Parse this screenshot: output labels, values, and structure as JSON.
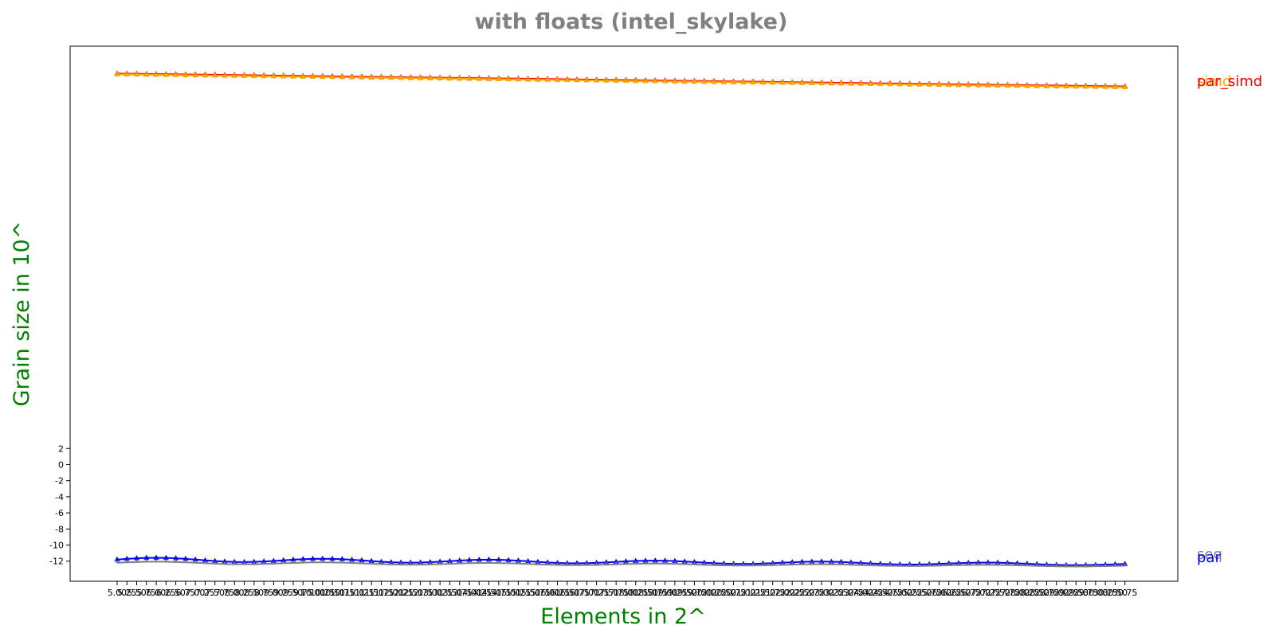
{
  "chart_data": {
    "type": "line",
    "title": "with floats  (intel_skylake)",
    "xlabel": "Elements in 2^",
    "ylabel": "Grain size in 10^",
    "x_range": [
      5.0,
      30.75
    ],
    "x_step": 0.25,
    "xlim": [
      3.8,
      32.1
    ],
    "ylim": [
      -14.5,
      52.0
    ],
    "x_tick_labels": [
      "5.00",
      "5.25",
      "5.50",
      "5.75",
      "6.00",
      "6.25",
      "6.50",
      "6.75",
      "7.00",
      "7.25",
      "7.50",
      "7.75",
      "8.00",
      "8.25",
      "8.50",
      "8.75",
      "9.00",
      "9.25",
      "9.50",
      "9.75",
      "10.00",
      "10.25",
      "10.50",
      "10.75",
      "11.00",
      "11.25",
      "11.50",
      "11.75",
      "12.00",
      "12.25",
      "12.50",
      "12.75",
      "13.00",
      "13.25",
      "13.50",
      "13.75",
      "14.00",
      "14.25",
      "14.50",
      "14.75",
      "15.00",
      "15.25",
      "15.50",
      "15.75",
      "16.00",
      "16.25",
      "16.50",
      "16.75",
      "17.00",
      "17.25",
      "17.50",
      "17.75",
      "18.00",
      "18.25",
      "18.50",
      "18.75",
      "19.00",
      "19.25",
      "19.50",
      "19.75",
      "20.00",
      "20.25",
      "20.50",
      "20.75",
      "21.00",
      "21.25",
      "21.50",
      "21.75",
      "22.00",
      "22.25",
      "22.50",
      "22.75",
      "23.00",
      "23.25",
      "23.50",
      "23.75",
      "24.00",
      "24.25",
      "24.50",
      "24.75",
      "25.00",
      "25.25",
      "25.50",
      "25.75",
      "26.00",
      "26.25",
      "26.50",
      "26.75",
      "27.00",
      "27.25",
      "27.50",
      "27.75",
      "28.00",
      "28.25",
      "28.50",
      "28.75",
      "29.00",
      "29.25",
      "29.50",
      "29.75",
      "30.00",
      "30.25",
      "30.50",
      "30.75"
    ],
    "y_tick_labels": [
      "-12",
      "-10",
      "-8",
      "-6",
      "-4",
      "-2",
      "0",
      "2"
    ],
    "y_ticks": [
      -12,
      -10,
      -8,
      -6,
      -4,
      -2,
      0,
      2
    ],
    "series": [
      {
        "name": "par_simd",
        "color": "#ff0000",
        "start": 48.6,
        "end": 47.0,
        "wiggle": 0.0,
        "marker": "triangle"
      },
      {
        "name": "simd",
        "color": "#ffa500",
        "start": 48.5,
        "end": 46.9,
        "wiggle": 0.0,
        "marker": "triangle"
      },
      {
        "name": "par",
        "color": "#0000ff",
        "start": -11.8,
        "end": -12.4,
        "wiggle": 0.25,
        "marker": "triangle"
      },
      {
        "name": "seq",
        "color": "#808080",
        "start": -12.2,
        "end": -12.6,
        "wiggle": 0.15,
        "marker": "star"
      }
    ],
    "grid": false,
    "legend": "right-end labels"
  },
  "series_labels": {
    "simd": "simd",
    "par_simd": "par_simd",
    "seq": "seq",
    "par": "par"
  }
}
